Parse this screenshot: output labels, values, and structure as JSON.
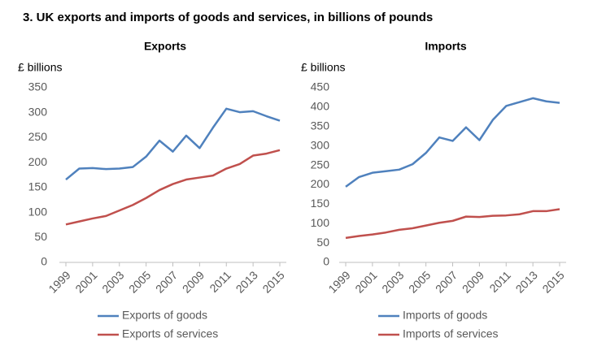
{
  "title": "3.  UK exports and imports of goods and services, in billions of pounds",
  "chart_data": [
    {
      "type": "line",
      "title": "Exports",
      "y_label": "£ billions",
      "x": [
        1999,
        2000,
        2001,
        2002,
        2003,
        2004,
        2005,
        2006,
        2007,
        2008,
        2009,
        2010,
        2011,
        2012,
        2013,
        2014,
        2015
      ],
      "xlim": [
        1999,
        2015
      ],
      "xticks": [
        1999,
        2001,
        2003,
        2005,
        2007,
        2009,
        2011,
        2013,
        2015
      ],
      "ylim": [
        0,
        350
      ],
      "yticks": [
        0,
        50,
        100,
        150,
        200,
        250,
        300,
        350
      ],
      "series": [
        {
          "name": "Exports of goods",
          "color": "#4f81bd",
          "values": [
            166,
            188,
            189,
            187,
            188,
            191,
            212,
            244,
            222,
            254,
            229,
            270,
            308,
            301,
            303,
            293,
            284
          ]
        },
        {
          "name": "Exports of services",
          "color": "#c0504d",
          "values": [
            76,
            82,
            88,
            93,
            104,
            115,
            129,
            145,
            157,
            166,
            170,
            174,
            188,
            197,
            214,
            218,
            225
          ]
        }
      ]
    },
    {
      "type": "line",
      "title": "Imports",
      "y_label": "£ billions",
      "x": [
        1999,
        2000,
        2001,
        2002,
        2003,
        2004,
        2005,
        2006,
        2007,
        2008,
        2009,
        2010,
        2011,
        2012,
        2013,
        2014,
        2015
      ],
      "xlim": [
        1999,
        2015
      ],
      "xticks": [
        1999,
        2001,
        2003,
        2005,
        2007,
        2009,
        2011,
        2013,
        2015
      ],
      "ylim": [
        0,
        450
      ],
      "yticks": [
        0,
        50,
        100,
        150,
        200,
        250,
        300,
        350,
        400,
        450
      ],
      "series": [
        {
          "name": "Imports of goods",
          "color": "#4f81bd",
          "values": [
            195,
            220,
            231,
            235,
            239,
            253,
            282,
            322,
            313,
            348,
            315,
            367,
            403,
            413,
            423,
            415,
            411
          ]
        },
        {
          "name": "Imports of services",
          "color": "#c0504d",
          "values": [
            63,
            68,
            72,
            77,
            84,
            88,
            95,
            102,
            107,
            118,
            117,
            120,
            121,
            124,
            132,
            132,
            137
          ]
        }
      ]
    }
  ]
}
